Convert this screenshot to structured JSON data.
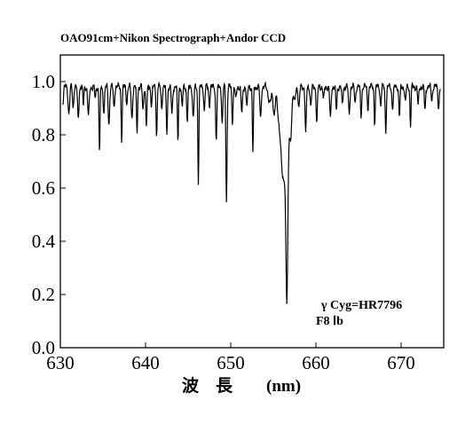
{
  "chart_data": {
    "type": "line",
    "title": "OAO91cm+Nikon Spectrograph+Andor CCD",
    "xlabel": "波　長　　(nm)",
    "ylabel": "",
    "xlim": [
      630,
      675
    ],
    "ylim": [
      0.0,
      1.1
    ],
    "xticks": [
      630,
      640,
      650,
      660,
      670
    ],
    "yticks": [
      0.0,
      0.2,
      0.4,
      0.6,
      0.8,
      1.0
    ],
    "xtick_labels": [
      "630",
      "640",
      "650",
      "660",
      "670"
    ],
    "ytick_labels": [
      "0.0",
      "0.2",
      "0.4",
      "0.6",
      "0.8",
      "1.0"
    ],
    "grid": false,
    "annotations": [
      "γ Cyg=HR7796",
      "F8 Ⅰb"
    ],
    "series": [
      {
        "continuum": 0.98,
        "x": [
          630.3,
          631.0,
          631.5,
          632.1,
          632.7,
          633.3,
          634.1,
          634.6,
          635.1,
          635.7,
          636.3,
          637.2,
          637.8,
          638.4,
          639.0,
          639.7,
          640.1,
          640.7,
          641.3,
          641.9,
          642.5,
          643.1,
          643.8,
          644.3,
          644.9,
          645.6,
          646.2,
          646.9,
          647.5,
          648.3,
          649.0,
          649.5,
          650.2,
          650.6,
          651.3,
          651.9,
          652.6,
          653.5,
          654.6,
          655.1,
          655.6,
          656.0,
          656.3,
          656.6,
          657.0,
          657.5,
          658.0,
          658.8,
          659.4,
          660.1,
          660.9,
          661.7,
          662.4,
          663.1,
          663.9,
          664.6,
          665.3,
          666.1,
          666.9,
          667.6,
          668.2,
          669.0,
          669.8,
          670.5,
          671.1,
          672.0,
          672.8,
          673.6,
          674.4
        ],
        "depth": [
          0.06,
          0.1,
          0.08,
          0.12,
          0.07,
          0.11,
          0.05,
          0.25,
          0.09,
          0.14,
          0.08,
          0.2,
          0.06,
          0.12,
          0.18,
          0.09,
          0.15,
          0.07,
          0.19,
          0.08,
          0.17,
          0.1,
          0.21,
          0.08,
          0.13,
          0.12,
          0.36,
          0.09,
          0.07,
          0.2,
          0.14,
          0.43,
          0.13,
          0.05,
          0.1,
          0.08,
          0.25,
          0.12,
          0.06,
          0.1,
          0.1,
          0.2,
          0.26,
          0.69,
          0.2,
          0.06,
          0.08,
          0.18,
          0.07,
          0.14,
          0.05,
          0.12,
          0.09,
          0.07,
          0.1,
          0.06,
          0.11,
          0.08,
          0.14,
          0.07,
          0.16,
          0.08,
          0.11,
          0.06,
          0.15,
          0.07,
          0.09,
          0.05,
          0.08
        ],
        "width": [
          0.07,
          0.09,
          0.07,
          0.08,
          0.06,
          0.09,
          0.06,
          0.06,
          0.08,
          0.08,
          0.07,
          0.06,
          0.07,
          0.08,
          0.06,
          0.07,
          0.07,
          0.07,
          0.06,
          0.07,
          0.07,
          0.08,
          0.06,
          0.07,
          0.07,
          0.08,
          0.06,
          0.07,
          0.07,
          0.07,
          0.07,
          0.07,
          0.07,
          0.07,
          0.08,
          0.07,
          0.06,
          0.08,
          0.18,
          0.12,
          0.16,
          0.2,
          0.22,
          0.12,
          0.15,
          0.1,
          0.08,
          0.07,
          0.08,
          0.07,
          0.07,
          0.08,
          0.07,
          0.07,
          0.08,
          0.07,
          0.07,
          0.07,
          0.06,
          0.07,
          0.07,
          0.08,
          0.07,
          0.07,
          0.06,
          0.07,
          0.07,
          0.07,
          0.07
        ]
      }
    ]
  }
}
